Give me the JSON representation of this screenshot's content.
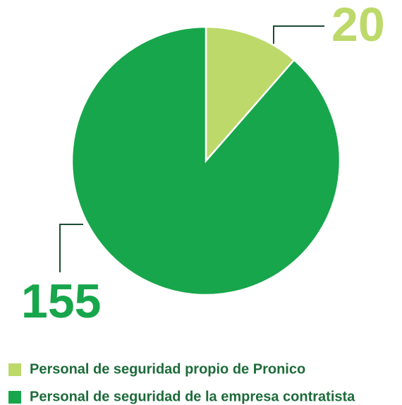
{
  "chart_data": {
    "type": "pie",
    "categories": [
      "Personal de seguridad propio de Pronico",
      "Personal de seguridad de la empresa contratista"
    ],
    "values": [
      20,
      155
    ],
    "colors": [
      "#bdd96a",
      "#17a64b"
    ]
  }
}
